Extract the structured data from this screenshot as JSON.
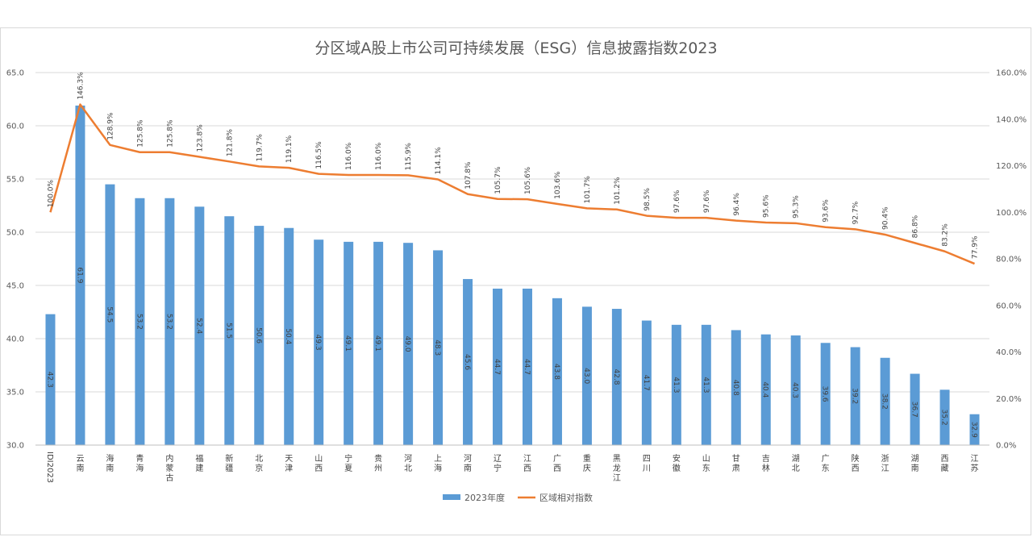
{
  "chart_data": {
    "type": "bar",
    "title": "分区域A股上市公司可持续发展（ESG）信息披露指数2023",
    "categories": [
      "IDI2023",
      "云南",
      "海南",
      "青海",
      "内蒙古",
      "福建",
      "新疆",
      "北京",
      "天津",
      "山西",
      "宁夏",
      "贵州",
      "河北",
      "上海",
      "河南",
      "辽宁",
      "江西",
      "广西",
      "重庆",
      "黑龙江",
      "四川",
      "安徽",
      "山东",
      "甘肃",
      "吉林",
      "湖北",
      "广东",
      "陕西",
      "浙江",
      "湖南",
      "西藏",
      "江苏"
    ],
    "series": [
      {
        "name": "2023年度",
        "type": "bar",
        "axis": "left",
        "color": "#5b9bd5",
        "values": [
          42.3,
          61.9,
          54.5,
          53.2,
          53.2,
          52.4,
          51.5,
          50.6,
          50.4,
          49.3,
          49.1,
          49.1,
          49.0,
          48.3,
          45.6,
          44.7,
          44.7,
          43.8,
          43.0,
          42.8,
          41.7,
          41.3,
          41.3,
          40.8,
          40.4,
          40.3,
          39.6,
          39.2,
          38.2,
          36.7,
          35.2,
          32.9
        ],
        "labels": [
          "42.3",
          "61.9",
          "54.5",
          "53.2",
          "53.2",
          "52.4",
          "51.5",
          "50.6",
          "50.4",
          "49.3",
          "49.1",
          "49.1",
          "49.0",
          "48.3",
          "45.6",
          "44.7",
          "44.7",
          "43.8",
          "43.0",
          "42.8",
          "41.7",
          "41.3",
          "41.3",
          "40.8",
          "40.4",
          "40.3",
          "39.6",
          "39.2",
          "38.2",
          "36.7",
          "35.2",
          "32.9"
        ]
      },
      {
        "name": "区域相对指数",
        "type": "line",
        "axis": "right",
        "color": "#ed7d31",
        "values": [
          100.0,
          146.3,
          128.9,
          125.8,
          125.8,
          123.8,
          121.8,
          119.7,
          119.1,
          116.5,
          116.0,
          116.0,
          115.9,
          114.1,
          107.8,
          105.7,
          105.6,
          103.6,
          101.7,
          101.2,
          98.5,
          97.6,
          97.6,
          96.4,
          95.6,
          95.3,
          93.6,
          92.7,
          90.4,
          86.8,
          83.2,
          77.9
        ],
        "labels": [
          "100.0%",
          "146.3%",
          "128.9%",
          "125.8%",
          "125.8%",
          "123.8%",
          "121.8%",
          "119.7%",
          "119.1%",
          "116.5%",
          "116.0%",
          "116.0%",
          "115.9%",
          "114.1%",
          "107.8%",
          "105.7%",
          "105.6%",
          "103.6%",
          "101.7%",
          "101.2%",
          "98.5%",
          "97.6%",
          "97.6%",
          "96.4%",
          "95.6%",
          "95.3%",
          "93.6%",
          "92.7%",
          "90.4%",
          "86.8%",
          "83.2%",
          "77.9%"
        ]
      }
    ],
    "y_left": {
      "min": 30.0,
      "max": 65.0,
      "ticks": [
        "30.0",
        "35.0",
        "40.0",
        "45.0",
        "50.0",
        "55.0",
        "60.0",
        "65.0"
      ]
    },
    "y_right": {
      "min": 0,
      "max": 160,
      "ticks": [
        "0.0%",
        "20.0%",
        "40.0%",
        "60.0%",
        "80.0%",
        "100.0%",
        "120.0%",
        "140.0%",
        "160.0%"
      ]
    },
    "grid": true,
    "legend_position": "bottom"
  }
}
